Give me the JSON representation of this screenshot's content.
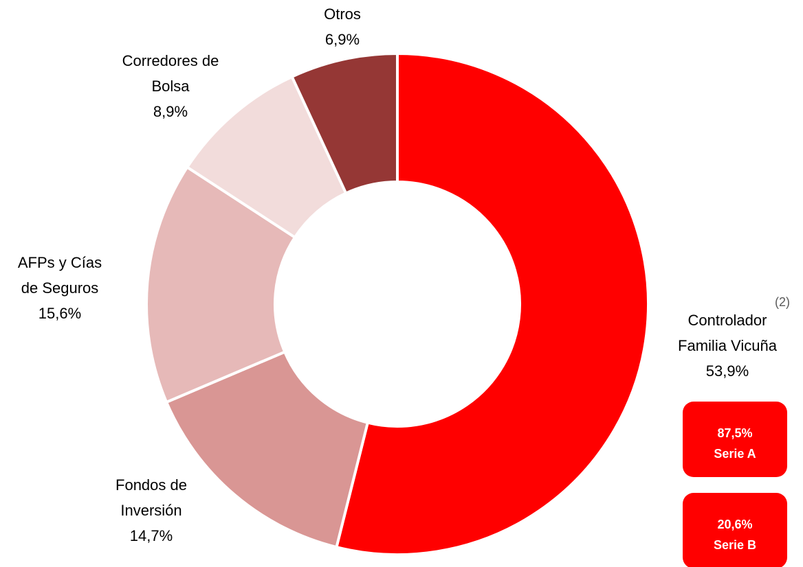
{
  "chart_data": {
    "type": "donut",
    "categories": [
      "Controlador\nFamilia Vicuña",
      "Fondos de\nInversión",
      "AFPs y Cías\nde Seguros",
      "Corredores de\nBolsa",
      "Otros"
    ],
    "values": [
      53.9,
      14.7,
      15.6,
      8.9,
      6.9
    ],
    "value_labels": [
      "53,9%",
      "14,7%",
      "15,6%",
      "8,9%",
      "6,9%"
    ],
    "colors": [
      "#ff0000",
      "#d99694",
      "#e6b9b8",
      "#f2dcdb",
      "#953735"
    ],
    "annotation": "(2)",
    "callouts": [
      {
        "label": "87,5%",
        "name": "Serie A"
      },
      {
        "label": "20,6%",
        "name": "Serie B"
      }
    ]
  }
}
